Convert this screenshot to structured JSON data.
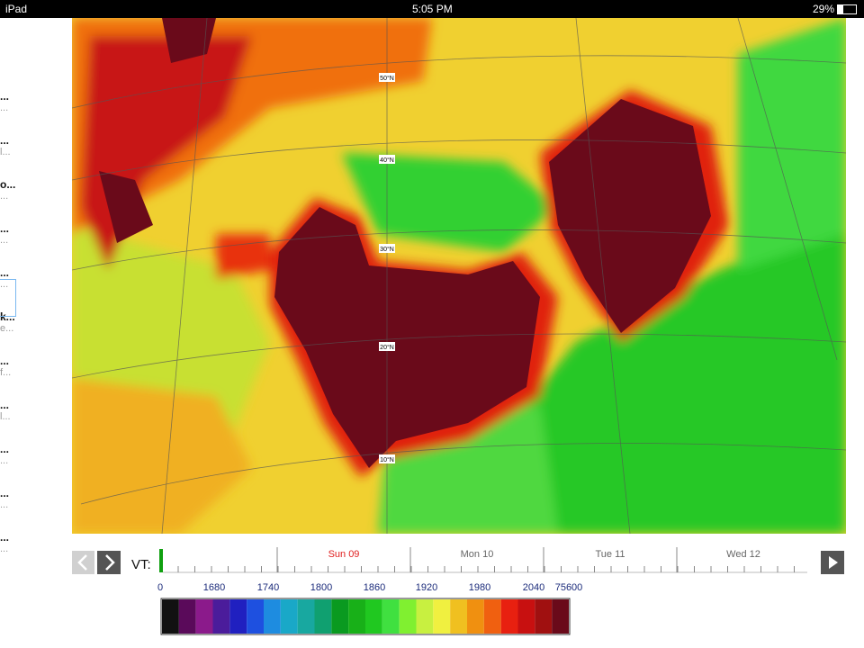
{
  "status_bar": {
    "device": "iPad",
    "time": "5:05 PM",
    "battery": "29%"
  },
  "sidebar": {
    "items": [
      {
        "title": "...",
        "subtitle": "..."
      },
      {
        "title": "...",
        "subtitle": "l..."
      },
      {
        "title": "o...",
        "subtitle": "..."
      },
      {
        "title": "...",
        "subtitle": "..."
      },
      {
        "title": "...",
        "subtitle": "..."
      },
      {
        "title": "k...",
        "subtitle": "e..."
      },
      {
        "title": "...",
        "subtitle": "f..."
      },
      {
        "title": "...",
        "subtitle": "l..."
      },
      {
        "title": "...",
        "subtitle": "..."
      },
      {
        "title": "...",
        "subtitle": "..."
      },
      {
        "title": "...",
        "subtitle": "..."
      }
    ]
  },
  "map": {
    "latitude_labels": [
      "50°N",
      "40°N",
      "30°N",
      "20°N",
      "10°N"
    ]
  },
  "timeline": {
    "label": "VT:",
    "days": [
      "Sun 09",
      "Mon 10",
      "Tue 11",
      "Wed 12"
    ]
  },
  "colorbar": {
    "labels": [
      "0",
      "1680",
      "1740",
      "1800",
      "1860",
      "1920",
      "1980",
      "2040",
      "75600"
    ],
    "colors": [
      "#111111",
      "#5a0a5a",
      "#8b1a8b",
      "#4b1c9b",
      "#2020c0",
      "#1e50e0",
      "#1e8ce0",
      "#19a8c8",
      "#18a8a0",
      "#10a070",
      "#0a9a20",
      "#18b018",
      "#20c820",
      "#40e040",
      "#80f030",
      "#c8f040",
      "#f0f040",
      "#f0c020",
      "#f09010",
      "#f06010",
      "#e82010",
      "#c81010",
      "#a01010",
      "#6a0a1a"
    ]
  }
}
